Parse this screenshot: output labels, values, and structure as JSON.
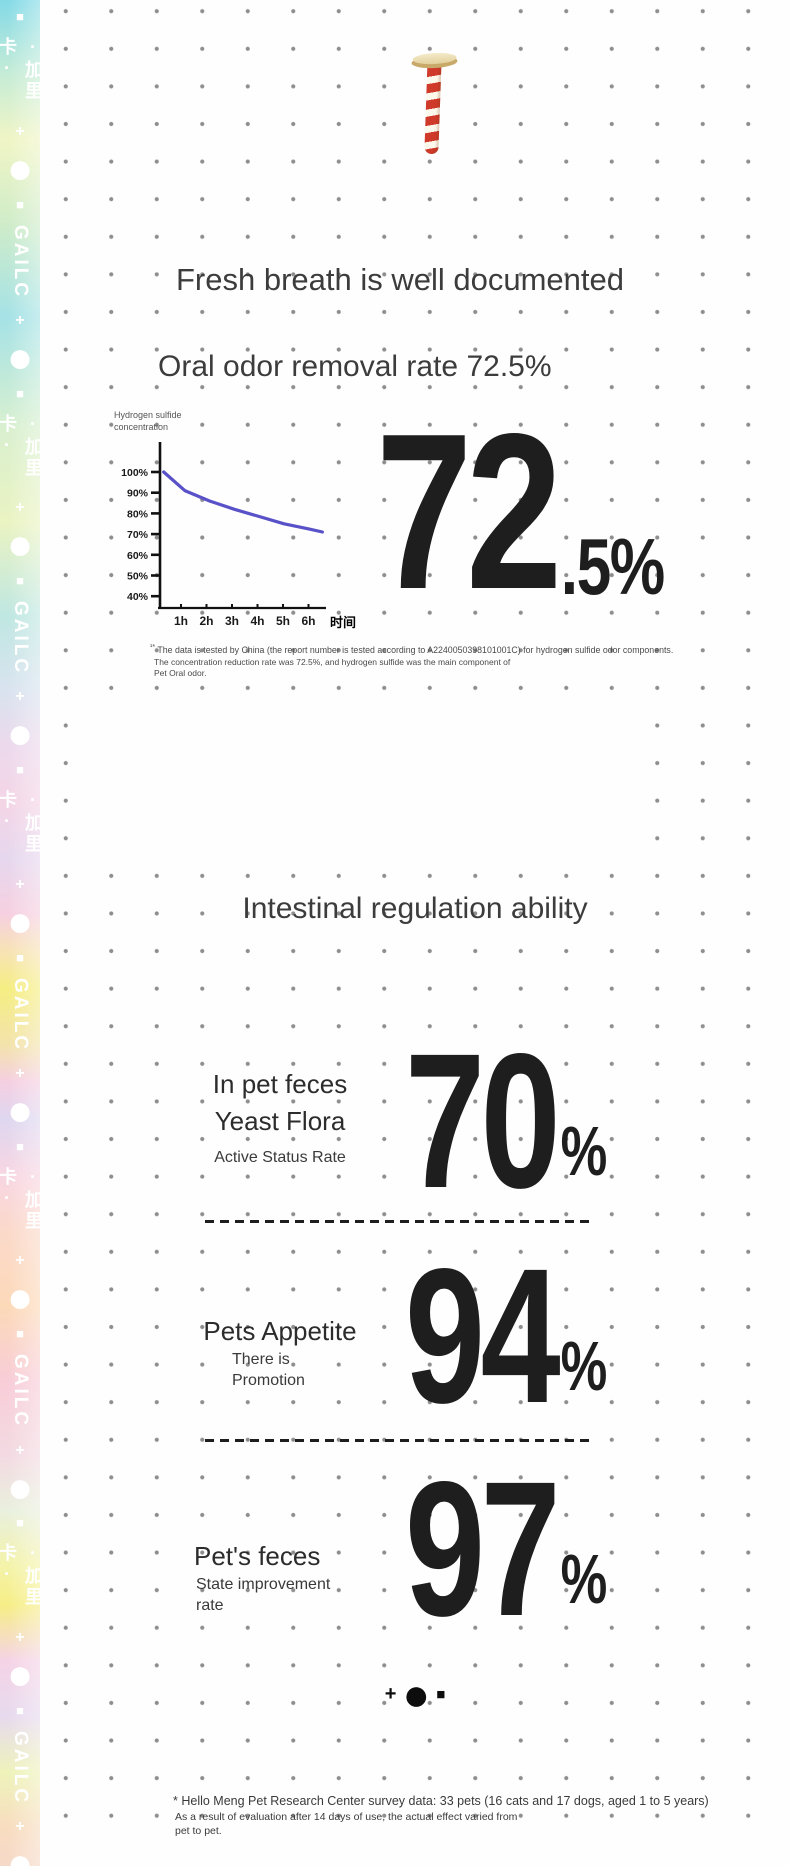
{
  "colors": {
    "chart_line": "#5951c8",
    "ink": "#1e1e1e",
    "stripe_red": "#cf3a2b",
    "dot": "#8e8e8e"
  },
  "sidebar": {
    "glyphs": {
      "cn": "·加里卡·",
      "en": "GAILC",
      "plus": "+",
      "circle": "●",
      "square": "■"
    },
    "lead": [
      "circle",
      "square"
    ],
    "unit": [
      "cn",
      "plus",
      "circle",
      "square",
      "en",
      "plus",
      "circle",
      "square"
    ],
    "repeats": 5
  },
  "breath": {
    "title": "Fresh breath is well documented",
    "subtitle": "Oral odor removal rate 72.5%",
    "big_value": "72",
    "big_suffix": ".5%",
    "footnote": {
      "marker": "¹*",
      "line1": " The data is tested by China (the report number is tested according to A2240050398101001C) for hydrogen sulfide odor components.",
      "rest": "The concentration reduction rate was 72.5%, and hydrogen sulfide was the main component of\nPet Oral odor."
    },
    "chart_data": {
      "type": "line",
      "title": "",
      "ylabel": "Hydrogen sulfide\nconcentration",
      "xlabel": "时间",
      "x": [
        "1h",
        "2h",
        "3h",
        "4h",
        "5h",
        "6h"
      ],
      "y_ticks": [
        "100%",
        "90%",
        "80%",
        "70%",
        "60%",
        "50%",
        "40%"
      ],
      "ylim": [
        40,
        100
      ],
      "grid": false,
      "legend": "none",
      "line_color": "#5951c8",
      "series": [
        {
          "name": "Hydrogen sulfide concentration",
          "points": [
            {
              "t": 0.15,
              "value": 100
            },
            {
              "t": 1,
              "value": 91
            },
            {
              "t": 2,
              "value": 86
            },
            {
              "t": 3,
              "value": 82
            },
            {
              "t": 4,
              "value": 78.5
            },
            {
              "t": 5,
              "value": 75
            },
            {
              "t": 6,
              "value": 72.5
            },
            {
              "t": 6.55,
              "value": 71
            }
          ]
        }
      ]
    }
  },
  "intestinal": {
    "title": "Intestinal regulation ability",
    "stats": [
      {
        "id": "yeast-flora",
        "lines": [
          {
            "text": "In pet feces",
            "size": "lg"
          },
          {
            "text": "Yeast Flora",
            "size": "lg"
          },
          {
            "text": "Active Status Rate",
            "size": "sm"
          }
        ],
        "value": "70",
        "unit": "%"
      },
      {
        "id": "appetite",
        "lines": [
          {
            "text": "Pets Appetite",
            "size": "lg"
          },
          {
            "text": "There is",
            "size": "sm"
          },
          {
            "text": "Promotion",
            "size": "sm"
          }
        ],
        "value": "94",
        "unit": "%"
      },
      {
        "id": "feces-state",
        "lines": [
          {
            "text": "Pet's feces",
            "size": "lg"
          },
          {
            "text": "State improvement",
            "size": "sm"
          },
          {
            "text": "rate",
            "size": "sm"
          }
        ],
        "value": "97",
        "unit": "%"
      }
    ],
    "logo": {
      "plus": "+",
      "circle": "●",
      "square": "■"
    },
    "footnote": {
      "line1": "* Hello Meng Pet Research Center survey data: 33 pets (16 cats and 17 dogs, aged 1 to 5 years)",
      "rest": "As a result of evaluation after 14 days of use, the actual effect varied from\npet to pet."
    }
  }
}
